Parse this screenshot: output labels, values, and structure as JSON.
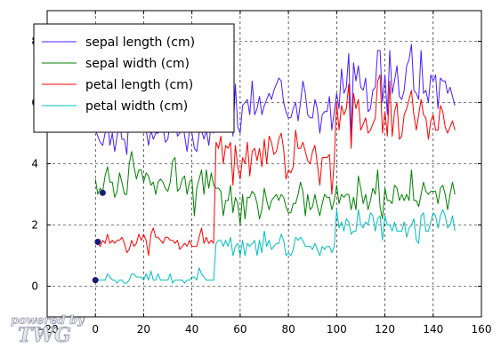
{
  "chart_data": {
    "type": "line",
    "xlim": [
      -20,
      160
    ],
    "ylim": [
      -1,
      9
    ],
    "grid": true,
    "grid_style": "dashed",
    "legend_position": "upper-left",
    "xticks": [
      -20,
      0,
      20,
      40,
      60,
      80,
      100,
      120,
      140,
      160
    ],
    "yticks": [
      0,
      2,
      4,
      6,
      8
    ],
    "xtick_labels": [
      "−20",
      "0",
      "20",
      "40",
      "60",
      "80",
      "100",
      "120",
      "140",
      "160"
    ],
    "ytick_labels": [
      "0",
      "2",
      "4",
      "6",
      "8"
    ],
    "series": [
      {
        "name": "sepal length (cm)",
        "color": "#4b1cff",
        "values": [
          5.1,
          4.9,
          4.7,
          4.6,
          5.0,
          5.4,
          4.6,
          5.0,
          4.4,
          4.9,
          5.4,
          4.8,
          4.8,
          4.3,
          5.8,
          5.7,
          5.4,
          5.1,
          5.7,
          5.1,
          5.4,
          5.1,
          4.6,
          5.1,
          4.8,
          5.0,
          5.0,
          5.2,
          5.2,
          4.7,
          4.8,
          5.4,
          5.2,
          5.5,
          4.9,
          5.0,
          5.5,
          4.9,
          4.4,
          5.1,
          5.0,
          4.5,
          4.4,
          5.0,
          5.1,
          4.8,
          5.1,
          4.6,
          5.3,
          5.0,
          7.0,
          6.4,
          6.9,
          5.5,
          6.5,
          5.7,
          6.3,
          4.9,
          6.6,
          5.2,
          5.0,
          5.9,
          6.0,
          6.1,
          5.6,
          6.7,
          5.6,
          5.8,
          6.2,
          5.6,
          5.9,
          6.1,
          6.3,
          6.1,
          6.4,
          6.6,
          6.8,
          6.7,
          6.0,
          5.7,
          5.5,
          5.5,
          5.8,
          6.0,
          5.4,
          6.0,
          6.7,
          6.3,
          5.6,
          5.5,
          5.5,
          6.1,
          5.8,
          5.0,
          5.6,
          5.7,
          5.7,
          6.2,
          5.1,
          5.7,
          6.3,
          5.8,
          7.1,
          6.3,
          6.5,
          7.6,
          4.9,
          7.3,
          6.7,
          7.2,
          6.5,
          6.4,
          6.8,
          5.7,
          5.8,
          6.4,
          6.5,
          7.7,
          7.7,
          6.0,
          6.9,
          5.6,
          7.7,
          6.3,
          6.7,
          7.2,
          6.2,
          6.1,
          6.4,
          7.2,
          7.4,
          7.9,
          6.4,
          6.3,
          6.1,
          7.7,
          6.3,
          6.4,
          6.0,
          6.9,
          6.7,
          6.9,
          5.8,
          6.8,
          6.7,
          6.7,
          6.3,
          6.5,
          6.2,
          5.9
        ]
      },
      {
        "name": "sepal width (cm)",
        "color": "#008000",
        "values": [
          3.5,
          3.0,
          3.2,
          3.1,
          3.6,
          3.9,
          3.4,
          3.4,
          2.9,
          3.1,
          3.7,
          3.4,
          3.0,
          3.0,
          4.0,
          4.4,
          3.9,
          3.5,
          3.8,
          3.8,
          3.4,
          3.7,
          3.6,
          3.3,
          3.4,
          3.0,
          3.4,
          3.5,
          3.4,
          3.2,
          3.1,
          3.4,
          4.1,
          4.2,
          3.1,
          3.2,
          3.5,
          3.6,
          3.0,
          3.4,
          3.5,
          2.3,
          3.2,
          3.5,
          3.8,
          3.0,
          3.8,
          3.2,
          3.7,
          3.3,
          3.2,
          3.2,
          3.1,
          2.3,
          2.8,
          2.8,
          3.3,
          2.4,
          2.9,
          2.7,
          2.0,
          3.0,
          2.2,
          2.9,
          2.9,
          3.1,
          3.0,
          2.7,
          2.2,
          2.5,
          3.2,
          2.8,
          2.5,
          2.8,
          2.9,
          3.0,
          2.8,
          3.0,
          2.9,
          2.6,
          2.4,
          2.4,
          2.7,
          2.7,
          3.0,
          3.4,
          3.1,
          2.3,
          3.0,
          2.5,
          2.6,
          3.0,
          2.6,
          2.3,
          2.7,
          3.0,
          2.9,
          2.9,
          2.5,
          2.8,
          3.3,
          2.7,
          3.0,
          2.9,
          3.0,
          3.0,
          2.5,
          2.9,
          2.5,
          3.6,
          3.2,
          2.7,
          3.0,
          2.5,
          2.8,
          3.2,
          3.0,
          3.8,
          2.6,
          2.2,
          3.2,
          2.8,
          2.8,
          2.7,
          3.3,
          3.2,
          2.8,
          3.0,
          2.8,
          3.0,
          2.8,
          3.8,
          2.8,
          2.8,
          2.6,
          3.0,
          3.4,
          3.1,
          3.0,
          3.1,
          3.1,
          3.1,
          2.7,
          3.2,
          3.3,
          3.0,
          2.5,
          3.0,
          3.4,
          3.0
        ]
      },
      {
        "name": "petal length (cm)",
        "color": "#ff0000",
        "values": [
          1.4,
          1.4,
          1.3,
          1.5,
          1.4,
          1.7,
          1.4,
          1.5,
          1.4,
          1.5,
          1.5,
          1.6,
          1.4,
          1.1,
          1.2,
          1.5,
          1.3,
          1.4,
          1.7,
          1.5,
          1.7,
          1.5,
          1.0,
          1.7,
          1.9,
          1.6,
          1.6,
          1.5,
          1.4,
          1.6,
          1.6,
          1.5,
          1.5,
          1.4,
          1.5,
          1.2,
          1.3,
          1.4,
          1.3,
          1.5,
          1.3,
          1.3,
          1.3,
          1.6,
          1.9,
          1.4,
          1.6,
          1.4,
          1.5,
          1.4,
          4.7,
          4.5,
          4.9,
          4.0,
          4.6,
          4.5,
          4.7,
          3.3,
          4.6,
          3.9,
          3.5,
          4.2,
          4.0,
          4.7,
          3.6,
          4.4,
          4.5,
          4.1,
          4.5,
          3.9,
          4.8,
          4.0,
          4.9,
          4.7,
          4.3,
          4.4,
          4.8,
          5.0,
          4.5,
          3.5,
          3.8,
          3.7,
          3.9,
          5.1,
          4.5,
          4.5,
          4.7,
          4.4,
          4.1,
          4.0,
          4.4,
          4.6,
          4.0,
          3.3,
          4.2,
          4.2,
          4.2,
          4.3,
          3.0,
          4.1,
          6.0,
          5.1,
          5.9,
          5.6,
          5.8,
          6.6,
          4.5,
          6.3,
          5.8,
          6.1,
          5.1,
          5.3,
          5.5,
          5.0,
          5.1,
          5.3,
          5.5,
          6.7,
          6.9,
          5.0,
          5.7,
          4.9,
          6.7,
          4.9,
          5.7,
          6.0,
          4.8,
          4.9,
          5.6,
          5.8,
          6.1,
          6.4,
          5.6,
          5.1,
          5.6,
          6.1,
          5.6,
          5.5,
          4.8,
          5.4,
          5.6,
          5.1,
          5.1,
          5.9,
          5.7,
          5.2,
          5.0,
          5.2,
          5.4,
          5.1
        ]
      },
      {
        "name": "petal width (cm)",
        "color": "#00bfbf",
        "values": [
          0.2,
          0.2,
          0.2,
          0.2,
          0.2,
          0.4,
          0.3,
          0.2,
          0.2,
          0.1,
          0.2,
          0.2,
          0.1,
          0.1,
          0.2,
          0.4,
          0.4,
          0.3,
          0.3,
          0.3,
          0.2,
          0.4,
          0.2,
          0.5,
          0.2,
          0.2,
          0.4,
          0.2,
          0.2,
          0.2,
          0.2,
          0.4,
          0.1,
          0.2,
          0.2,
          0.2,
          0.2,
          0.1,
          0.2,
          0.2,
          0.3,
          0.3,
          0.2,
          0.6,
          0.4,
          0.3,
          0.2,
          0.2,
          0.2,
          0.2,
          1.4,
          1.5,
          1.5,
          1.3,
          1.5,
          1.3,
          1.6,
          1.0,
          1.3,
          1.4,
          1.0,
          1.5,
          1.0,
          1.4,
          1.3,
          1.4,
          1.5,
          1.0,
          1.5,
          1.1,
          1.8,
          1.3,
          1.5,
          1.2,
          1.3,
          1.4,
          1.4,
          1.7,
          1.5,
          1.0,
          1.1,
          1.0,
          1.2,
          1.6,
          1.5,
          1.6,
          1.5,
          1.3,
          1.3,
          1.3,
          1.2,
          1.4,
          1.2,
          1.0,
          1.3,
          1.2,
          1.3,
          1.3,
          1.1,
          1.3,
          2.5,
          1.9,
          2.1,
          1.8,
          2.2,
          2.1,
          1.7,
          1.8,
          1.8,
          2.5,
          2.0,
          1.9,
          2.1,
          2.0,
          2.4,
          2.3,
          1.8,
          2.2,
          2.3,
          1.5,
          2.3,
          2.0,
          2.0,
          1.8,
          2.1,
          1.8,
          1.8,
          1.8,
          2.1,
          1.6,
          1.9,
          2.0,
          2.2,
          1.5,
          1.4,
          2.3,
          2.4,
          1.8,
          1.8,
          2.1,
          2.4,
          2.3,
          1.9,
          2.3,
          2.5,
          2.3,
          1.9,
          2.0,
          2.3,
          1.8
        ]
      }
    ],
    "markers": [
      {
        "x": 3,
        "y": 3.05,
        "color": "#1a1a7a"
      },
      {
        "x": 1,
        "y": 1.45,
        "color": "#1a1a7a"
      },
      {
        "x": 0,
        "y": 0.2,
        "color": "#1a1a7a"
      }
    ]
  },
  "watermark": {
    "line1": "powered by",
    "line2": "TWG"
  }
}
